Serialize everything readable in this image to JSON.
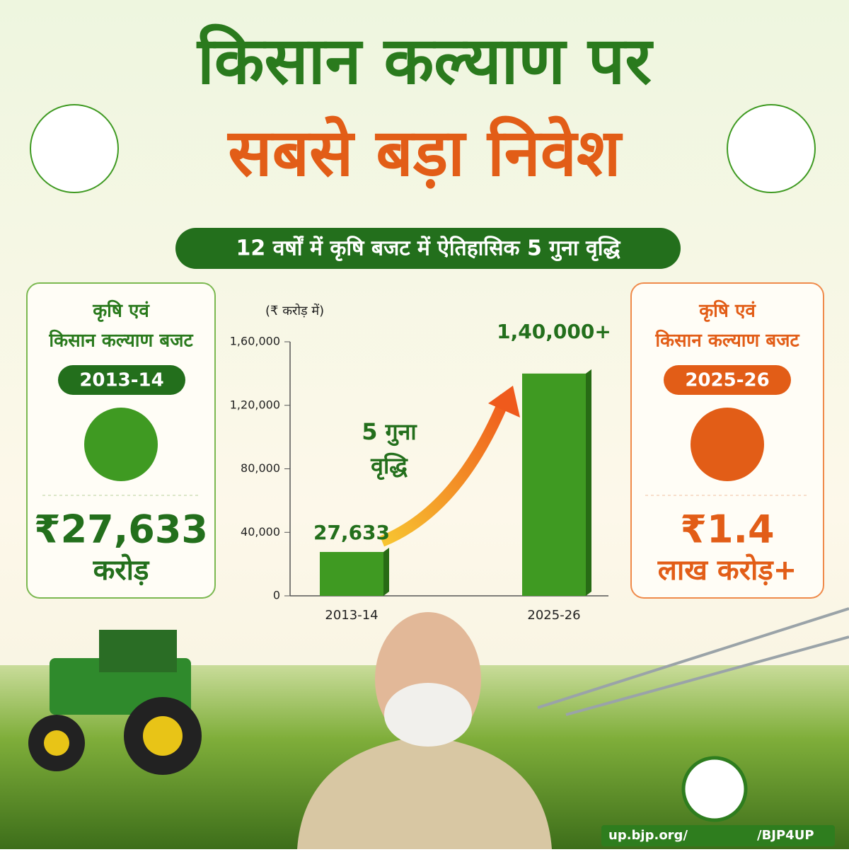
{
  "header": {
    "title_line1": "किसान कल्याण पर",
    "title_line2": "सबसे बड़ा निवेश",
    "banner": "12 वर्षों में कृषि बजट में ऐतिहासिक 5 गुना वृद्धि"
  },
  "left_card": {
    "line1": "कृषि एवं",
    "line2": "किसान कल्याण बजट",
    "year": "2013-14",
    "amount": "₹27,633",
    "unit": "करोड़"
  },
  "right_card": {
    "line1": "कृषि एवं",
    "line2": "किसान कल्याण बजट",
    "year": "2025-26",
    "amount": "₹1.4",
    "unit": "लाख करोड़+"
  },
  "chart_data": {
    "type": "bar",
    "unit_label": "(₹ करोड़ में)",
    "categories": [
      "2013-14",
      "2025-26"
    ],
    "values": [
      27633,
      140000
    ],
    "value_labels": [
      "27,633",
      "1,40,000+"
    ],
    "color": "#3f9a22",
    "ylim": [
      0,
      160000
    ],
    "yticks": [
      0,
      {
        "value": 40000,
        "label": "40,000"
      },
      {
        "value": 80000,
        "label": "80,000"
      },
      {
        "value": 120000,
        "label": "1,20,000"
      },
      {
        "value": 160000,
        "label": "1,60,000"
      }
    ],
    "annotation": {
      "line1": "5 गुना",
      "line2": "वृद्धि"
    }
  },
  "footer": {
    "site": "up.bjp.org/",
    "handle": "/BJP4UP"
  }
}
